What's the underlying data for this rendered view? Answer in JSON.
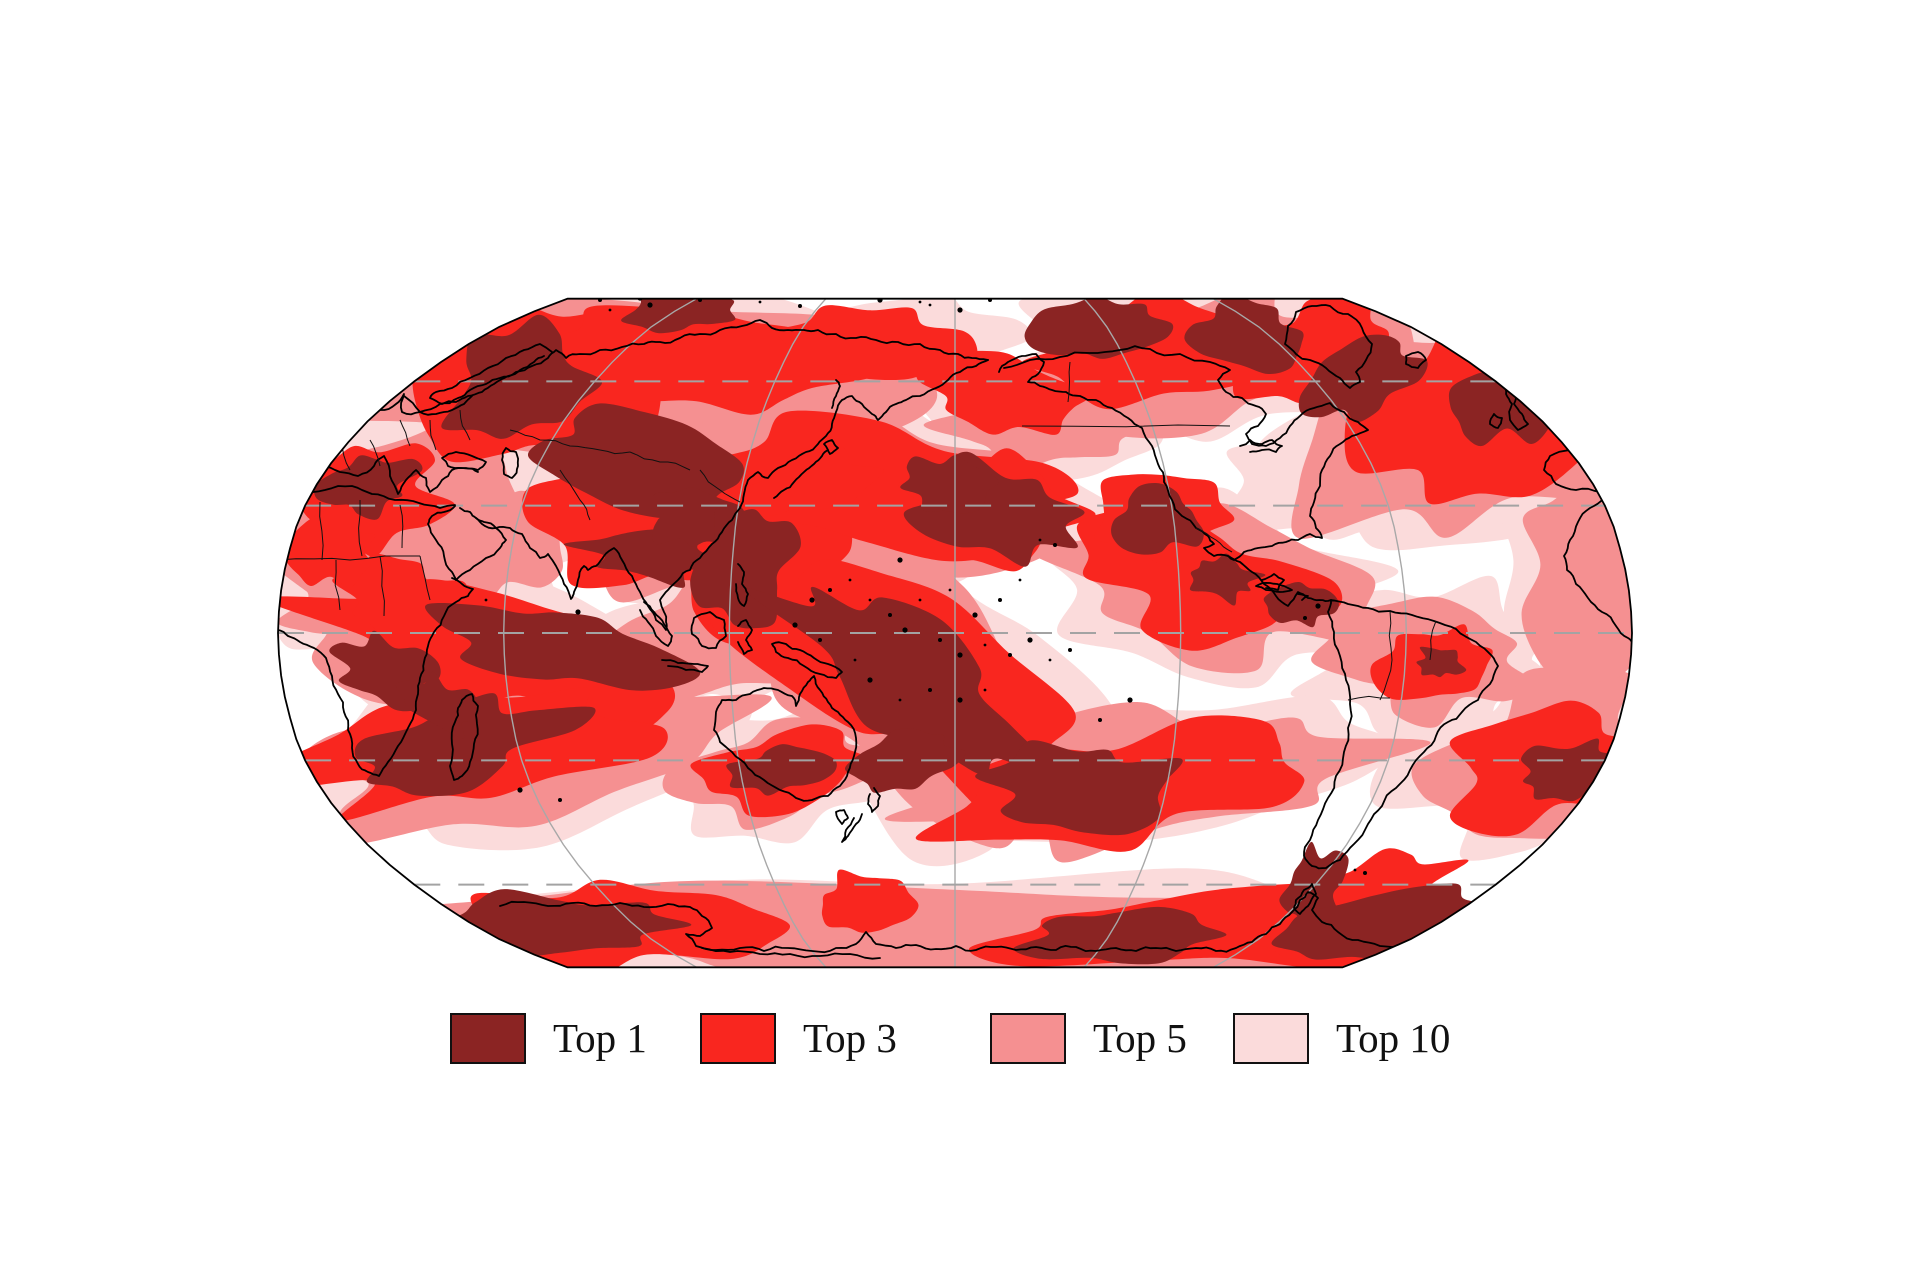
{
  "legend": {
    "items": [
      {
        "label": "Top 1",
        "color": "#8b2423"
      },
      {
        "label": "Top 3",
        "color": "#f9261f"
      },
      {
        "label": "Top 5",
        "color": "#f59091"
      },
      {
        "label": "Top 10",
        "color": "#fbdbdb"
      }
    ]
  },
  "map_colors": {
    "ocean": "#ffffff",
    "coastline": "#000000",
    "graticule": "#a3a3a3",
    "outline": "#000000"
  }
}
